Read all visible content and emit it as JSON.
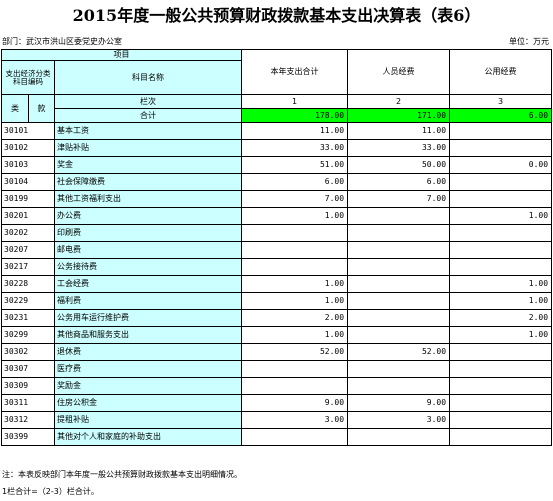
{
  "title": "2015年度一般公共预算财政拨款基本支出决算表（表6）",
  "department": "部门：武汉市洪山区委党史办公室",
  "unit": "单位：万元",
  "header": {
    "project": "项目",
    "class_code": "支出经济分类科目编码",
    "subject_name": "科目名称",
    "col_total": "本年支出合计",
    "col_personnel": "人员经费",
    "col_public": "公用经费",
    "lei": "类",
    "kuan": "款",
    "row_seq_label": "栏次",
    "seq_1": "1",
    "seq_2": "2",
    "seq_3": "3",
    "total_label": "合计",
    "total_values": [
      "178.00",
      "171.00",
      "6.00"
    ]
  },
  "rows": [
    {
      "code": "30101",
      "name": "基本工资",
      "total": "11.00",
      "personnel": "11.00",
      "public": ""
    },
    {
      "code": "30102",
      "name": "津贴补贴",
      "total": "33.00",
      "personnel": "33.00",
      "public": ""
    },
    {
      "code": "30103",
      "name": "奖金",
      "total": "51.00",
      "personnel": "50.00",
      "public": "0.00"
    },
    {
      "code": "30104",
      "name": "社会保障缴费",
      "total": "6.00",
      "personnel": "6.00",
      "public": ""
    },
    {
      "code": "30199",
      "name": "其他工资福利支出",
      "total": "7.00",
      "personnel": "7.00",
      "public": ""
    },
    {
      "code": "30201",
      "name": "办公费",
      "total": "1.00",
      "personnel": "",
      "public": "1.00"
    },
    {
      "code": "30202",
      "name": "印刷费",
      "total": "",
      "personnel": "",
      "public": ""
    },
    {
      "code": "30207",
      "name": "邮电费",
      "total": "",
      "personnel": "",
      "public": ""
    },
    {
      "code": "30217",
      "name": "公务接待费",
      "total": "",
      "personnel": "",
      "public": ""
    },
    {
      "code": "30228",
      "name": "工会经费",
      "total": "1.00",
      "personnel": "",
      "public": "1.00"
    },
    {
      "code": "30229",
      "name": "福利费",
      "total": "1.00",
      "personnel": "",
      "public": "1.00"
    },
    {
      "code": "30231",
      "name": "公务用车运行维护费",
      "total": "2.00",
      "personnel": "",
      "public": "2.00"
    },
    {
      "code": "30299",
      "name": "其他商品和服务支出",
      "total": "1.00",
      "personnel": "",
      "public": "1.00"
    },
    {
      "code": "30302",
      "name": "退休费",
      "total": "52.00",
      "personnel": "52.00",
      "public": ""
    },
    {
      "code": "30307",
      "name": "医疗费",
      "total": "",
      "personnel": "",
      "public": ""
    },
    {
      "code": "30309",
      "name": "奖励金",
      "total": "",
      "personnel": "",
      "public": ""
    },
    {
      "code": "30311",
      "name": "住房公积金",
      "total": "9.00",
      "personnel": "9.00",
      "public": ""
    },
    {
      "code": "30312",
      "name": "提租补贴",
      "total": "3.00",
      "personnel": "3.00",
      "public": ""
    },
    {
      "code": "30399",
      "name": "其他对个人和家庭的补助支出",
      "total": "",
      "personnel": "",
      "public": ""
    }
  ],
  "notes": [
    "注：本表反映部门本年度一般公共预算财政拨款基本支出明细情况。",
    "1栏合计=（2-3）栏合计。"
  ]
}
